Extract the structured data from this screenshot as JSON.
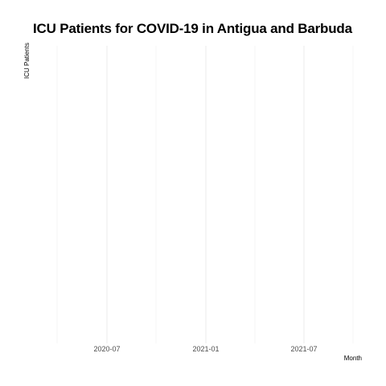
{
  "chart_data": {
    "type": "line",
    "title": "ICU Patients for COVID-19 in Antigua and Barbuda",
    "xlabel": "Month",
    "ylabel": "ICU Patients",
    "x_ticks": [
      "2020-07",
      "2021-01",
      "2021-07"
    ],
    "xlim": [
      "2020-04",
      "2021-10"
    ],
    "series": [],
    "grid": true,
    "colors": {
      "grid_major": "#ebebeb",
      "grid_minor": "#f5f5f5",
      "tick_text": "#4d4d4d"
    }
  }
}
